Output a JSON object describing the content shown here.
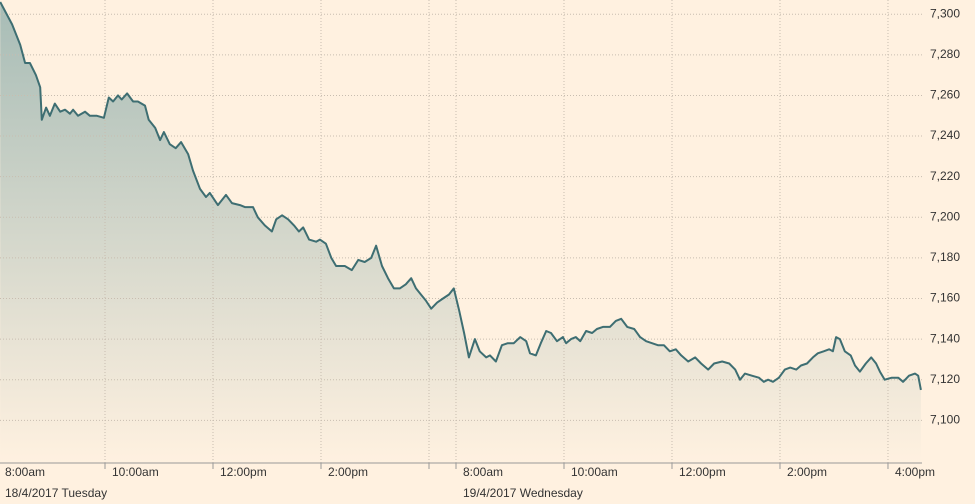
{
  "chart_data": {
    "type": "area",
    "x": [
      0.06,
      0.28,
      0.43,
      0.52,
      0.61,
      0.72,
      0.8,
      0.83,
      0.91,
      0.98,
      1.07,
      1.17,
      1.26,
      1.35,
      1.41,
      1.5,
      1.63,
      1.72,
      1.85,
      1.98,
      2.07,
      2.15,
      2.24,
      2.31,
      2.41,
      2.52,
      2.61,
      2.74,
      2.81,
      2.93,
      3.02,
      3.09,
      3.2,
      3.31,
      3.41,
      3.54,
      3.63,
      3.76,
      3.87,
      3.94,
      4.09,
      4.24,
      4.35,
      4.5,
      4.59,
      4.74,
      4.83,
      4.96,
      5.09,
      5.17,
      5.28,
      5.39,
      5.5,
      5.59,
      5.67,
      5.78,
      5.91,
      5.98,
      6.09,
      6.19,
      6.28,
      6.44,
      6.57,
      6.69,
      6.81,
      6.93,
      7.02,
      7.13,
      7.24,
      7.35,
      7.46,
      7.57,
      7.67,
      7.76,
      7.85,
      7.94,
      8.04,
      8.15,
      8.26,
      8.37,
      8.46,
      8.56,
      8.65,
      8.74,
      8.85,
      8.94,
      9.06,
      9.13,
      9.24,
      9.35,
      9.46,
      9.57,
      9.69,
      9.8,
      9.87,
      9.98,
      10.07,
      10.17,
      10.26,
      10.37,
      10.48,
      10.54,
      10.63,
      10.72,
      10.8,
      10.91,
      11.02,
      11.11,
      11.22,
      11.35,
      11.46,
      11.56,
      11.67,
      11.8,
      11.91,
      12.02,
      12.13,
      12.24,
      12.35,
      12.46,
      12.57,
      12.67,
      12.8,
      12.93,
      13.04,
      13.17,
      13.28,
      13.43,
      13.56,
      13.67,
      13.76,
      13.85,
      13.98,
      14.11,
      14.2,
      14.28,
      14.37,
      14.48,
      14.59,
      14.69,
      14.8,
      14.89,
      15.0,
      15.11,
      15.2,
      15.31,
      15.41,
      15.48,
      15.54,
      15.61,
      15.7,
      15.81,
      15.89,
      15.98,
      16.09,
      16.19,
      16.28,
      16.35,
      16.44,
      16.57,
      16.69,
      16.78,
      16.89,
      17.0,
      17.06,
      17.11
    ],
    "values": [
      7306,
      7295,
      7285,
      7276,
      7276,
      7270,
      7264,
      7248,
      7254,
      7250,
      7256,
      7252,
      7253,
      7251,
      7253,
      7250,
      7252,
      7250,
      7250,
      7249,
      7259,
      7257,
      7260,
      7258,
      7261,
      7257,
      7257,
      7255,
      7248,
      7244,
      7238,
      7242,
      7236,
      7234,
      7237,
      7231,
      7223,
      7214,
      7210,
      7212,
      7206,
      7211,
      7207,
      7206,
      7205,
      7205,
      7200,
      7196,
      7193,
      7199,
      7201,
      7199,
      7196,
      7193,
      7195,
      7189,
      7188,
      7189,
      7187,
      7180,
      7176,
      7176,
      7174,
      7179,
      7178,
      7180,
      7186,
      7176,
      7170,
      7165,
      7165,
      7167,
      7170,
      7165,
      7162,
      7159,
      7155,
      7158,
      7160,
      7162,
      7165,
      7154,
      7143,
      7131,
      7140,
      7134,
      7131,
      7132,
      7129,
      7137,
      7138,
      7138,
      7141,
      7139,
      7133,
      7132,
      7138,
      7144,
      7143,
      7139,
      7141,
      7138,
      7140,
      7141,
      7139,
      7144,
      7143,
      7145,
      7146,
      7146,
      7149,
      7150,
      7146,
      7145,
      7141,
      7139,
      7138,
      7137,
      7137,
      7134,
      7135,
      7132,
      7129,
      7131,
      7128,
      7125,
      7128,
      7129,
      7128,
      7125,
      7120,
      7123,
      7122,
      7121,
      7119,
      7120,
      7119,
      7121,
      7125,
      7126,
      7125,
      7127,
      7128,
      7131,
      7133,
      7134,
      7135,
      7134,
      7141,
      7140,
      7134,
      7132,
      7127,
      7124,
      7128,
      7131,
      7128,
      7124,
      7120,
      7121,
      7121,
      7119,
      7122,
      7123,
      7122,
      7115
    ],
    "color": "#3e6e72",
    "xlim": [
      0,
      17.13
    ],
    "xticks": [
      {
        "value": 0,
        "label": "8:00am"
      },
      {
        "value": 2,
        "label": "10:00am"
      },
      {
        "value": 4,
        "label": "12:00pm"
      },
      {
        "value": 6,
        "label": "2:00pm"
      },
      {
        "value": 8,
        "label": null
      },
      {
        "value": 8.5,
        "label": "8:00am"
      },
      {
        "value": 10.5,
        "label": "10:00am"
      },
      {
        "value": 12.5,
        "label": "12:00pm"
      },
      {
        "value": 14.5,
        "label": "2:00pm"
      },
      {
        "value": 16.5,
        "label": "4:00pm"
      }
    ],
    "date_labels": [
      {
        "value": 0,
        "label": "18/4/2017 Tuesday"
      },
      {
        "value": 8.5,
        "label": "19/4/2017 Wednesday"
      }
    ],
    "ylim": [
      7079,
      7307
    ],
    "yticks": [
      {
        "value": 7100,
        "label": "7,100"
      },
      {
        "value": 7120,
        "label": "7,120"
      },
      {
        "value": 7140,
        "label": "7,140"
      },
      {
        "value": 7160,
        "label": "7,160"
      },
      {
        "value": 7180,
        "label": "7,180"
      },
      {
        "value": 7200,
        "label": "7,200"
      },
      {
        "value": 7220,
        "label": "7,220"
      },
      {
        "value": 7240,
        "label": "7,240"
      },
      {
        "value": 7260,
        "label": "7,260"
      },
      {
        "value": 7280,
        "label": "7,280"
      },
      {
        "value": 7300,
        "label": "7,300"
      }
    ],
    "grid": true
  }
}
